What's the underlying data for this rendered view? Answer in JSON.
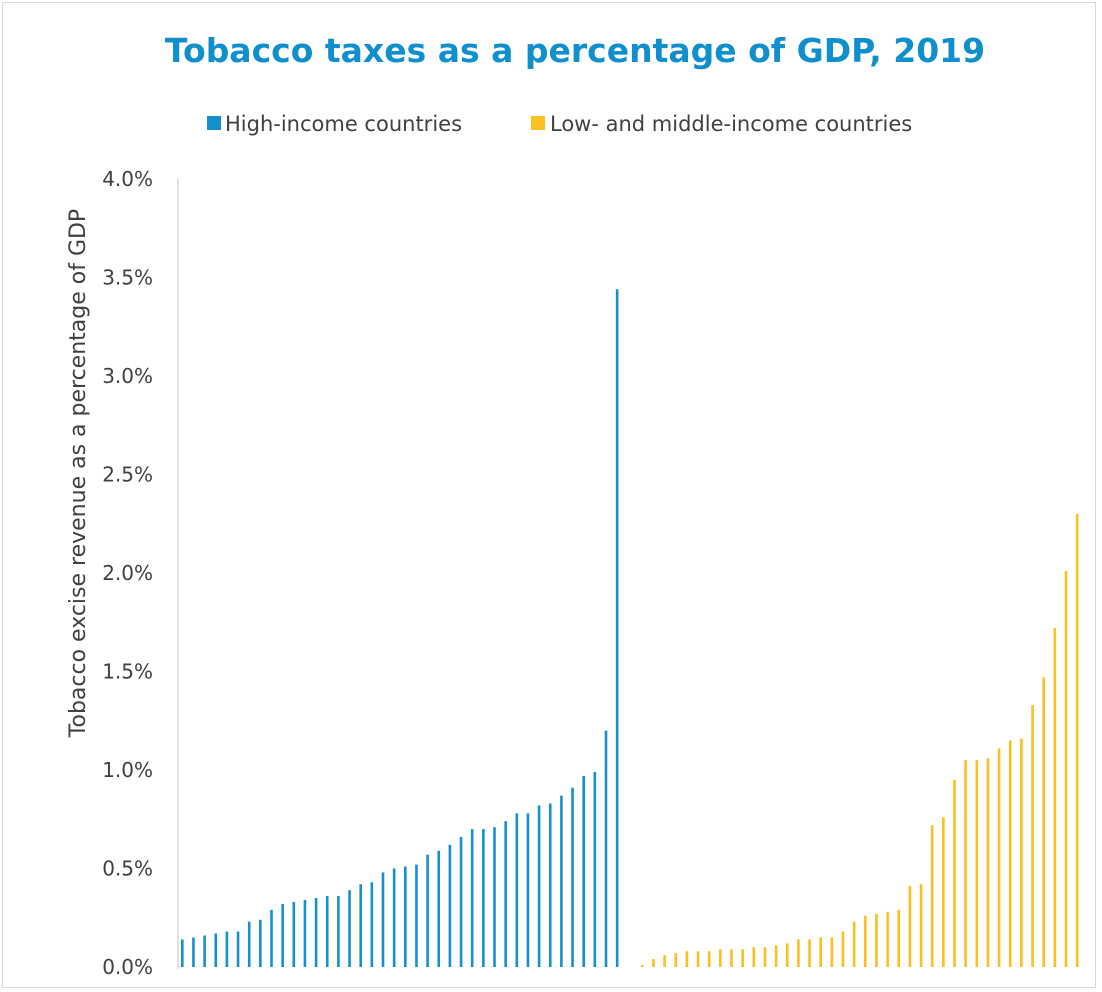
{
  "chart_data": {
    "type": "bar",
    "title": "Tobacco taxes as a percentage of GDP, 2019",
    "ylabel": "Tobacco excise revenue as a percentage of GDP",
    "xlabel": "",
    "ylim": [
      0,
      4.0
    ],
    "yticks": [
      "0.0%",
      "0.5%",
      "1.0%",
      "1.5%",
      "2.0%",
      "2.5%",
      "3.0%",
      "3.5%",
      "4.0%"
    ],
    "legend_position": "top",
    "grid": false,
    "series": [
      {
        "name": "High-income countries",
        "color": "#1490cf",
        "values": [
          0.14,
          0.15,
          0.16,
          0.17,
          0.18,
          0.18,
          0.23,
          0.24,
          0.29,
          0.32,
          0.33,
          0.34,
          0.35,
          0.36,
          0.36,
          0.39,
          0.42,
          0.43,
          0.48,
          0.5,
          0.51,
          0.52,
          0.57,
          0.59,
          0.62,
          0.66,
          0.7,
          0.7,
          0.71,
          0.74,
          0.78,
          0.78,
          0.82,
          0.83,
          0.87,
          0.91,
          0.97,
          0.99,
          1.2,
          3.44
        ]
      },
      {
        "name": "Low- and middle-income countries",
        "color": "#fac01f",
        "values": [
          0.01,
          0.04,
          0.06,
          0.07,
          0.08,
          0.08,
          0.08,
          0.09,
          0.09,
          0.09,
          0.1,
          0.1,
          0.11,
          0.12,
          0.14,
          0.14,
          0.15,
          0.15,
          0.18,
          0.23,
          0.26,
          0.27,
          0.28,
          0.29,
          0.41,
          0.42,
          0.72,
          0.76,
          0.95,
          1.05,
          1.05,
          1.06,
          1.11,
          1.15,
          1.16,
          1.33,
          1.47,
          1.72,
          2.01,
          2.3
        ]
      }
    ]
  }
}
